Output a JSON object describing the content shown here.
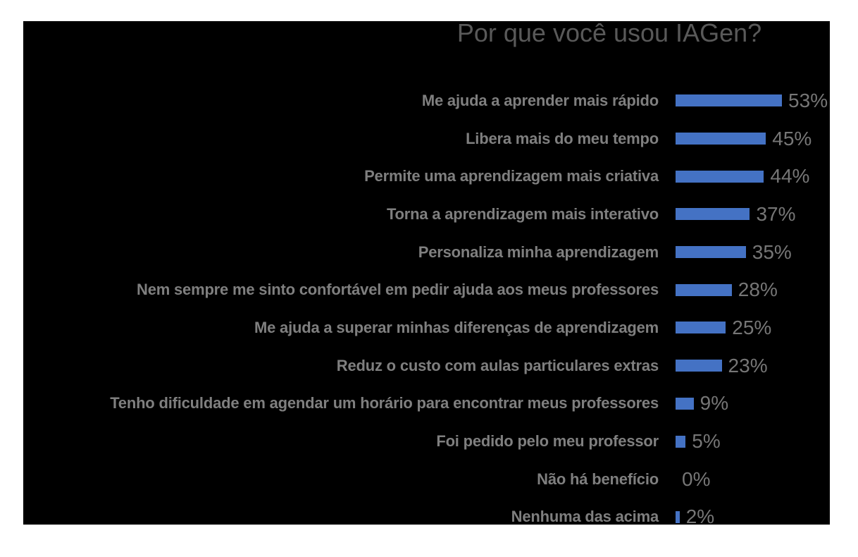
{
  "chart": {
    "page_background": "#ffffff",
    "plot_background": "#000000",
    "bar_color": "#4472C4",
    "title_color": "#595959",
    "label_color": "#7f7f7f",
    "value_color": "#767676"
  },
  "chart_data": {
    "type": "bar",
    "orientation": "horizontal",
    "title": "Por que você usou IAGen?",
    "categories": [
      "Me ajuda a aprender mais rápido",
      "Libera mais do meu tempo",
      "Permite uma aprendizagem mais criativa",
      "Torna a aprendizagem mais interativo",
      "Personaliza minha aprendizagem",
      "Nem sempre me sinto confortável em pedir ajuda aos meus professores",
      "Me ajuda a superar minhas diferenças de aprendizagem",
      "Reduz o custo com aulas particulares extras",
      "Tenho dificuldade em agendar um horário para encontrar meus professores",
      "Foi pedido pelo meu professor",
      "Não há benefício",
      "Nenhuma das acima"
    ],
    "values": [
      53,
      45,
      44,
      37,
      35,
      28,
      25,
      23,
      9,
      5,
      0,
      2
    ],
    "value_labels": [
      "53%",
      "45%",
      "44%",
      "37%",
      "35%",
      "28%",
      "25%",
      "23%",
      "9%",
      "5%",
      "0%",
      "2%"
    ],
    "xlabel": "",
    "ylabel": "",
    "xlim": [
      0,
      53
    ],
    "grid": false,
    "legend": false,
    "value_label_position": "outside-end",
    "category_label_position": "left-of-bar"
  }
}
